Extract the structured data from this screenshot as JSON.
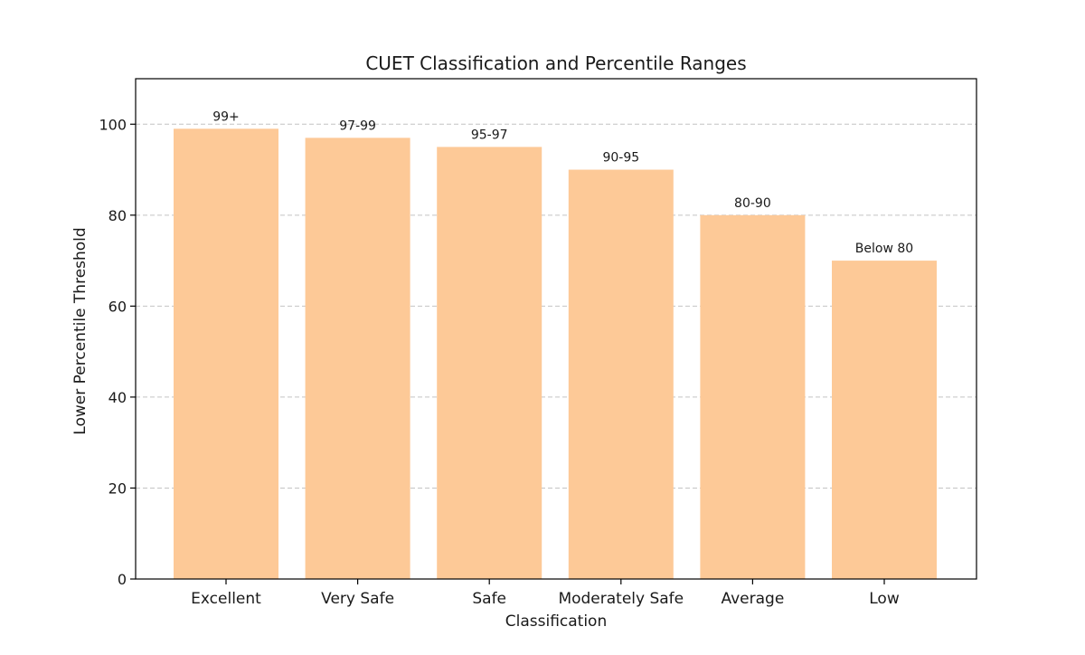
{
  "chart_data": {
    "type": "bar",
    "title": "CUET Classification and Percentile Ranges",
    "xlabel": "Classification",
    "ylabel": "Lower Percentile Threshold",
    "categories": [
      "Excellent",
      "Very Safe",
      "Safe",
      "Moderately Safe",
      "Average",
      "Low"
    ],
    "values": [
      99,
      97,
      95,
      90,
      80,
      70
    ],
    "data_labels": [
      "99+",
      "97-99",
      "95-97",
      "90-95",
      "80-90",
      "Below 80"
    ],
    "ylim": [
      0,
      110
    ],
    "yticks": [
      0,
      20,
      40,
      60,
      80,
      100
    ],
    "grid": "y-dashed",
    "colors": {
      "bar": "#fdc997",
      "grid": "#c4c4c4",
      "axis": "#000000"
    }
  }
}
